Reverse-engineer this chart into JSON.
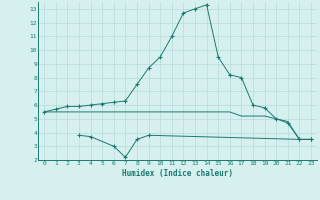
{
  "xlabel": "Humidex (Indice chaleur)",
  "x_values": [
    0,
    1,
    2,
    3,
    4,
    5,
    6,
    7,
    8,
    9,
    10,
    11,
    12,
    13,
    14,
    15,
    16,
    17,
    18,
    19,
    20,
    21,
    22,
    23
  ],
  "line1": [
    5.5,
    5.7,
    5.9,
    5.9,
    6.0,
    6.1,
    6.2,
    6.3,
    7.5,
    8.7,
    9.5,
    11.0,
    12.7,
    13.0,
    13.3,
    9.5,
    8.2,
    8.0,
    6.0,
    5.8,
    5.0,
    4.7,
    3.5,
    3.5
  ],
  "line2": [
    5.5,
    5.5,
    5.5,
    5.5,
    5.5,
    5.5,
    5.5,
    5.5,
    5.5,
    5.5,
    5.5,
    5.5,
    5.5,
    5.5,
    5.5,
    5.5,
    5.5,
    5.2,
    5.2,
    5.2,
    5.0,
    4.8,
    3.5,
    3.5
  ],
  "line3_x": [
    3,
    4,
    6,
    7,
    8,
    9,
    22,
    23
  ],
  "line3_y": [
    3.8,
    3.7,
    3.0,
    2.2,
    3.5,
    3.8,
    3.5,
    3.5
  ],
  "color": "#1a7a6e",
  "bg_color": "#d6f0f0",
  "grid_color": "#b8dada",
  "ylim": [
    2,
    13.5
  ],
  "xlim": [
    -0.5,
    23.5
  ],
  "yticks": [
    2,
    3,
    4,
    5,
    6,
    7,
    8,
    9,
    10,
    11,
    12,
    13
  ],
  "xticks": [
    0,
    1,
    2,
    3,
    4,
    5,
    6,
    7,
    8,
    9,
    10,
    11,
    12,
    13,
    14,
    15,
    16,
    17,
    18,
    19,
    20,
    21,
    22,
    23
  ]
}
